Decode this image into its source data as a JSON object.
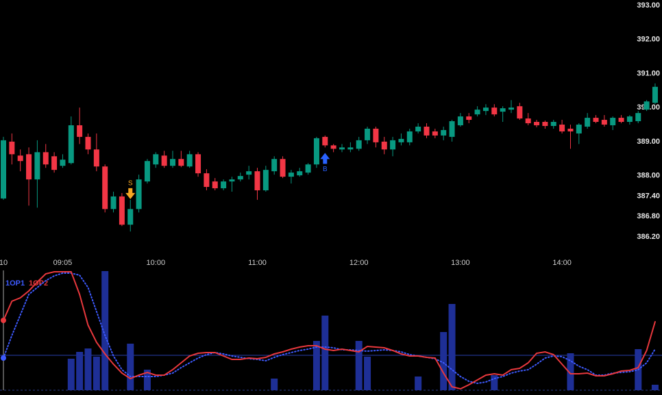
{
  "chart_data": [
    {
      "type": "candlestick",
      "categories": [
        "10",
        null,
        null,
        null,
        null,
        null,
        null,
        "09:05",
        null,
        null,
        null,
        null,
        null,
        null,
        null,
        null,
        null,
        null,
        "10:00",
        null,
        null,
        null,
        null,
        null,
        null,
        null,
        null,
        null,
        null,
        null,
        "11:00",
        null,
        null,
        null,
        null,
        null,
        null,
        null,
        null,
        null,
        null,
        null,
        "12:00",
        null,
        null,
        null,
        null,
        null,
        null,
        null,
        null,
        null,
        null,
        null,
        "13:00",
        null,
        null,
        null,
        null,
        null,
        null,
        null,
        null,
        null,
        null,
        null,
        "14:00",
        null,
        null,
        null,
        null,
        null,
        null,
        null,
        null,
        null,
        null,
        null
      ],
      "open": [
        387.33,
        389.0,
        388.59,
        388.63,
        387.89,
        388.69,
        388.57,
        388.29,
        388.37,
        389.48,
        389.14,
        388.77,
        388.27,
        387.02,
        387.39,
        386.56,
        387.02,
        387.83,
        388.33,
        388.59,
        388.29,
        388.49,
        388.27,
        388.63,
        388.07,
        387.83,
        387.63,
        387.83,
        387.89,
        388.03,
        388.13,
        387.57,
        388.13,
        388.49,
        387.97,
        388.01,
        388.09,
        388.33,
        389.14,
        388.89,
        388.77,
        388.77,
        388.79,
        389.04,
        389.38,
        389.0,
        388.77,
        388.98,
        388.98,
        389.3,
        389.44,
        389.3,
        389.18,
        389.14,
        389.48,
        389.74,
        389.8,
        389.9,
        390.0,
        389.88,
        389.94,
        390.04,
        389.68,
        389.58,
        389.58,
        389.46,
        389.5,
        389.38,
        389.24,
        389.44,
        389.7,
        389.64,
        389.48,
        389.7,
        389.58,
        389.6,
        389.94,
        390.14
      ],
      "high": [
        389.14,
        389.24,
        388.77,
        388.83,
        389.04,
        388.93,
        388.69,
        388.63,
        389.74,
        390.0,
        389.24,
        389.24,
        388.33,
        387.53,
        387.49,
        387.29,
        388.03,
        388.49,
        388.69,
        388.73,
        388.73,
        388.73,
        388.73,
        388.69,
        388.19,
        387.93,
        387.89,
        387.97,
        388.09,
        388.29,
        388.23,
        388.29,
        388.57,
        388.57,
        388.17,
        388.23,
        388.37,
        389.14,
        389.18,
        388.93,
        388.93,
        388.98,
        389.14,
        389.44,
        389.44,
        389.14,
        389.14,
        389.24,
        389.38,
        389.54,
        389.54,
        389.38,
        389.44,
        389.64,
        389.84,
        389.84,
        390.04,
        390.1,
        390.1,
        390.04,
        390.22,
        390.14,
        389.84,
        389.64,
        389.62,
        389.64,
        389.64,
        389.5,
        389.54,
        389.84,
        389.78,
        389.78,
        389.74,
        389.78,
        389.78,
        389.9,
        390.22,
        390.71
      ],
      "low": [
        387.29,
        388.33,
        388.13,
        387.12,
        387.06,
        388.23,
        388.09,
        388.23,
        388.33,
        388.93,
        388.63,
        388.13,
        386.92,
        386.92,
        386.52,
        386.36,
        386.92,
        387.77,
        388.23,
        388.23,
        388.23,
        388.25,
        388.23,
        387.97,
        387.57,
        387.57,
        387.57,
        387.53,
        387.83,
        387.89,
        387.29,
        387.53,
        388.03,
        387.93,
        387.77,
        387.97,
        388.03,
        388.23,
        388.83,
        388.69,
        388.69,
        388.69,
        388.73,
        388.93,
        388.83,
        388.63,
        388.57,
        388.89,
        388.89,
        389.24,
        389.1,
        389.1,
        389.04,
        389.0,
        389.44,
        389.54,
        389.74,
        389.78,
        389.74,
        389.58,
        389.84,
        389.64,
        389.48,
        389.42,
        389.38,
        389.38,
        389.24,
        388.79,
        388.93,
        389.38,
        389.54,
        389.44,
        389.34,
        389.54,
        389.5,
        389.54,
        389.9,
        390.1
      ],
      "close": [
        389.04,
        388.63,
        388.43,
        387.89,
        388.69,
        388.33,
        388.17,
        388.47,
        389.48,
        389.14,
        388.77,
        388.27,
        387.02,
        387.39,
        386.56,
        387.02,
        387.89,
        388.43,
        388.63,
        388.29,
        388.49,
        388.29,
        388.63,
        388.07,
        387.67,
        387.63,
        387.83,
        387.89,
        387.99,
        388.13,
        387.57,
        388.17,
        388.49,
        387.97,
        388.09,
        388.13,
        388.33,
        389.1,
        388.89,
        388.79,
        388.83,
        388.83,
        389.04,
        389.38,
        388.98,
        388.77,
        389.04,
        389.08,
        389.3,
        389.44,
        389.18,
        389.18,
        389.34,
        389.6,
        389.74,
        389.64,
        389.94,
        390.0,
        389.8,
        389.98,
        390.0,
        389.68,
        389.54,
        389.48,
        389.46,
        389.58,
        389.3,
        389.3,
        389.5,
        389.7,
        389.58,
        389.5,
        389.7,
        389.58,
        389.74,
        389.84,
        390.18,
        390.61
      ],
      "up_color": "#089981",
      "down_color": "#f23645",
      "ylim": [
        385.7,
        393.16
      ],
      "yticks": [
        {
          "value": 393,
          "label": "393.00"
        },
        {
          "value": 392,
          "label": "392.00"
        },
        {
          "value": 391,
          "label": "391.00"
        },
        {
          "value": 390,
          "label": "390.00"
        },
        {
          "value": 389,
          "label": "389.00"
        },
        {
          "value": 388,
          "label": "388.00"
        },
        {
          "value": 387.4,
          "label": "387.40"
        },
        {
          "value": 386.8,
          "label": "386.80"
        },
        {
          "value": 386.2,
          "label": "386.20"
        }
      ],
      "annotations": [
        {
          "index": 15,
          "text": "S",
          "color": "#f5a623",
          "direction": "down"
        },
        {
          "index": 38,
          "text": "B",
          "color": "#2962ff",
          "direction": "up"
        }
      ]
    },
    {
      "type": "combo",
      "ylim": [
        0,
        175
      ],
      "level": 51,
      "bars": {
        "color": "#1e2f96",
        "values": [
          null,
          null,
          null,
          null,
          null,
          null,
          null,
          null,
          46,
          56,
          61,
          49,
          174,
          null,
          null,
          68,
          null,
          30,
          null,
          null,
          null,
          null,
          null,
          null,
          null,
          null,
          null,
          null,
          null,
          null,
          null,
          null,
          17,
          null,
          null,
          null,
          null,
          72,
          109,
          null,
          null,
          null,
          72,
          49,
          null,
          null,
          null,
          null,
          null,
          20,
          null,
          null,
          85,
          126,
          null,
          null,
          null,
          null,
          22,
          null,
          null,
          null,
          null,
          null,
          null,
          null,
          null,
          54,
          null,
          null,
          null,
          null,
          null,
          null,
          null,
          60,
          null,
          8
        ]
      },
      "series": [
        {
          "name": "1OP1",
          "color": "#3d5afe",
          "style": "dotted",
          "values": [
            47,
            80,
            110,
            140,
            150,
            160,
            167,
            171,
            171,
            168,
            150,
            115,
            80,
            50,
            30,
            20,
            20,
            20,
            20,
            22,
            25,
            33,
            40,
            47,
            52,
            55,
            53,
            50,
            48,
            46,
            45,
            43,
            48,
            52,
            55,
            58,
            60,
            63,
            63,
            62,
            59,
            59,
            58,
            57,
            58,
            59,
            58,
            56,
            52,
            50,
            48,
            46,
            40,
            30,
            20,
            13,
            10,
            12,
            17,
            20,
            25,
            28,
            30,
            38,
            47,
            50,
            49,
            43,
            35,
            30,
            22,
            22,
            25,
            26,
            27,
            30,
            40,
            60
          ]
        },
        {
          "name": "1OP2",
          "color": "#e8383d",
          "style": "solid",
          "values": [
            102,
            130,
            135,
            145,
            158,
            170,
            173,
            173,
            173,
            140,
            95,
            70,
            53,
            38,
            25,
            17,
            22,
            26,
            22,
            22,
            30,
            40,
            50,
            54,
            55,
            55,
            50,
            45,
            45,
            47,
            46,
            48,
            53,
            56,
            60,
            63,
            65,
            65,
            60,
            58,
            60,
            58,
            56,
            64,
            63,
            62,
            58,
            53,
            50,
            50,
            48,
            47,
            25,
            5,
            2,
            8,
            15,
            22,
            24,
            22,
            30,
            32,
            40,
            54,
            56,
            52,
            38,
            24,
            24,
            25,
            21,
            21,
            24,
            28,
            29,
            33,
            58,
            100
          ]
        }
      ]
    }
  ]
}
